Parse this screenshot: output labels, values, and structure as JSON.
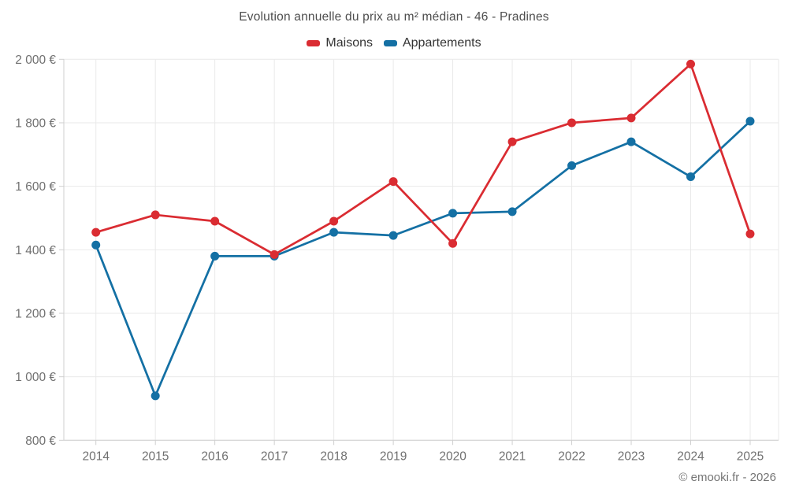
{
  "title": "Evolution annuelle du prix au m² médian - 46 - Pradines",
  "footer_credit": "© emooki.fr - 2026",
  "colors": {
    "maisons_red": "#da2c32",
    "appartements_blue": "#1470a4",
    "gridline": "#e9e9e9",
    "axis_line": "#cfcfcf",
    "tick_label": "#707070",
    "title_text": "#4e4e4e",
    "legend_text": "#333333",
    "background": "#ffffff"
  },
  "chart_data": {
    "type": "line",
    "x": [
      2014,
      2015,
      2016,
      2017,
      2018,
      2019,
      2020,
      2021,
      2022,
      2023,
      2024,
      2025
    ],
    "series": [
      {
        "name": "Maisons",
        "color": "#da2c32",
        "values": [
          1455,
          1510,
          1490,
          1385,
          1490,
          1615,
          1420,
          1740,
          1800,
          1815,
          1985,
          1450
        ]
      },
      {
        "name": "Appartements",
        "color": "#1470a4",
        "values": [
          1415,
          940,
          1380,
          1380,
          1455,
          1445,
          1515,
          1520,
          1665,
          1740,
          1630,
          1805
        ]
      }
    ],
    "title": "Evolution annuelle du prix au m² médian - 46 - Pradines",
    "xlabel": "",
    "ylabel": "",
    "ylim": [
      800,
      2000
    ],
    "ytick_step": 200,
    "ytick_labels": [
      "800 €",
      "1 000 €",
      "1 200 €",
      "1 400 €",
      "1 600 €",
      "1 800 €",
      "2 000 €"
    ],
    "grid": true,
    "legend_position": "top",
    "marker": "circle"
  }
}
